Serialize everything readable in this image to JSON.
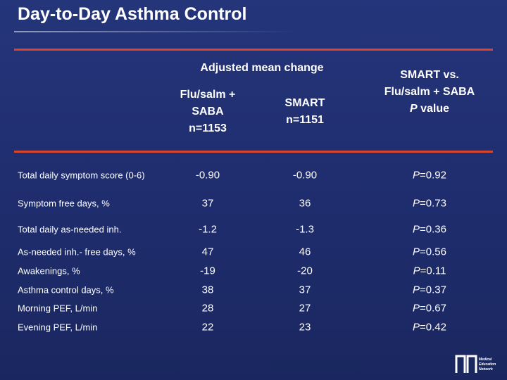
{
  "title": "Day-to-Day Asthma Control",
  "table": {
    "group_header": "Adjusted mean change",
    "columns": [
      [
        "Flu/salm +",
        "SABA",
        "n=1153"
      ],
      [
        "SMART",
        "n=1151"
      ],
      [
        "SMART vs.",
        "Flu/salm + SABA",
        "P value"
      ]
    ],
    "rows": [
      [
        "Total daily symptom score (0-6)",
        "-0.90",
        "-0.90",
        "P=0.92"
      ],
      [
        "Symptom free days, %",
        "37",
        "36",
        "P=0.73"
      ],
      [
        "Total daily as-needed inh.",
        "-1.2",
        "-1.3",
        "P=0.36"
      ],
      [
        "As-needed inh.- free days, %",
        "47",
        "46",
        "P=0.56"
      ],
      [
        "Awakenings, %",
        "-19",
        "-20",
        "P=0.11"
      ],
      [
        "Asthma control days, %",
        "38",
        "37",
        "P=0.37"
      ],
      [
        "Morning PEF, L/min",
        "28",
        "27",
        "P=0.67"
      ],
      [
        "Evening PEF, L/min",
        "22",
        "23",
        "P=0.42"
      ]
    ]
  },
  "logo": [
    "Medical",
    "Education",
    "Network"
  ]
}
